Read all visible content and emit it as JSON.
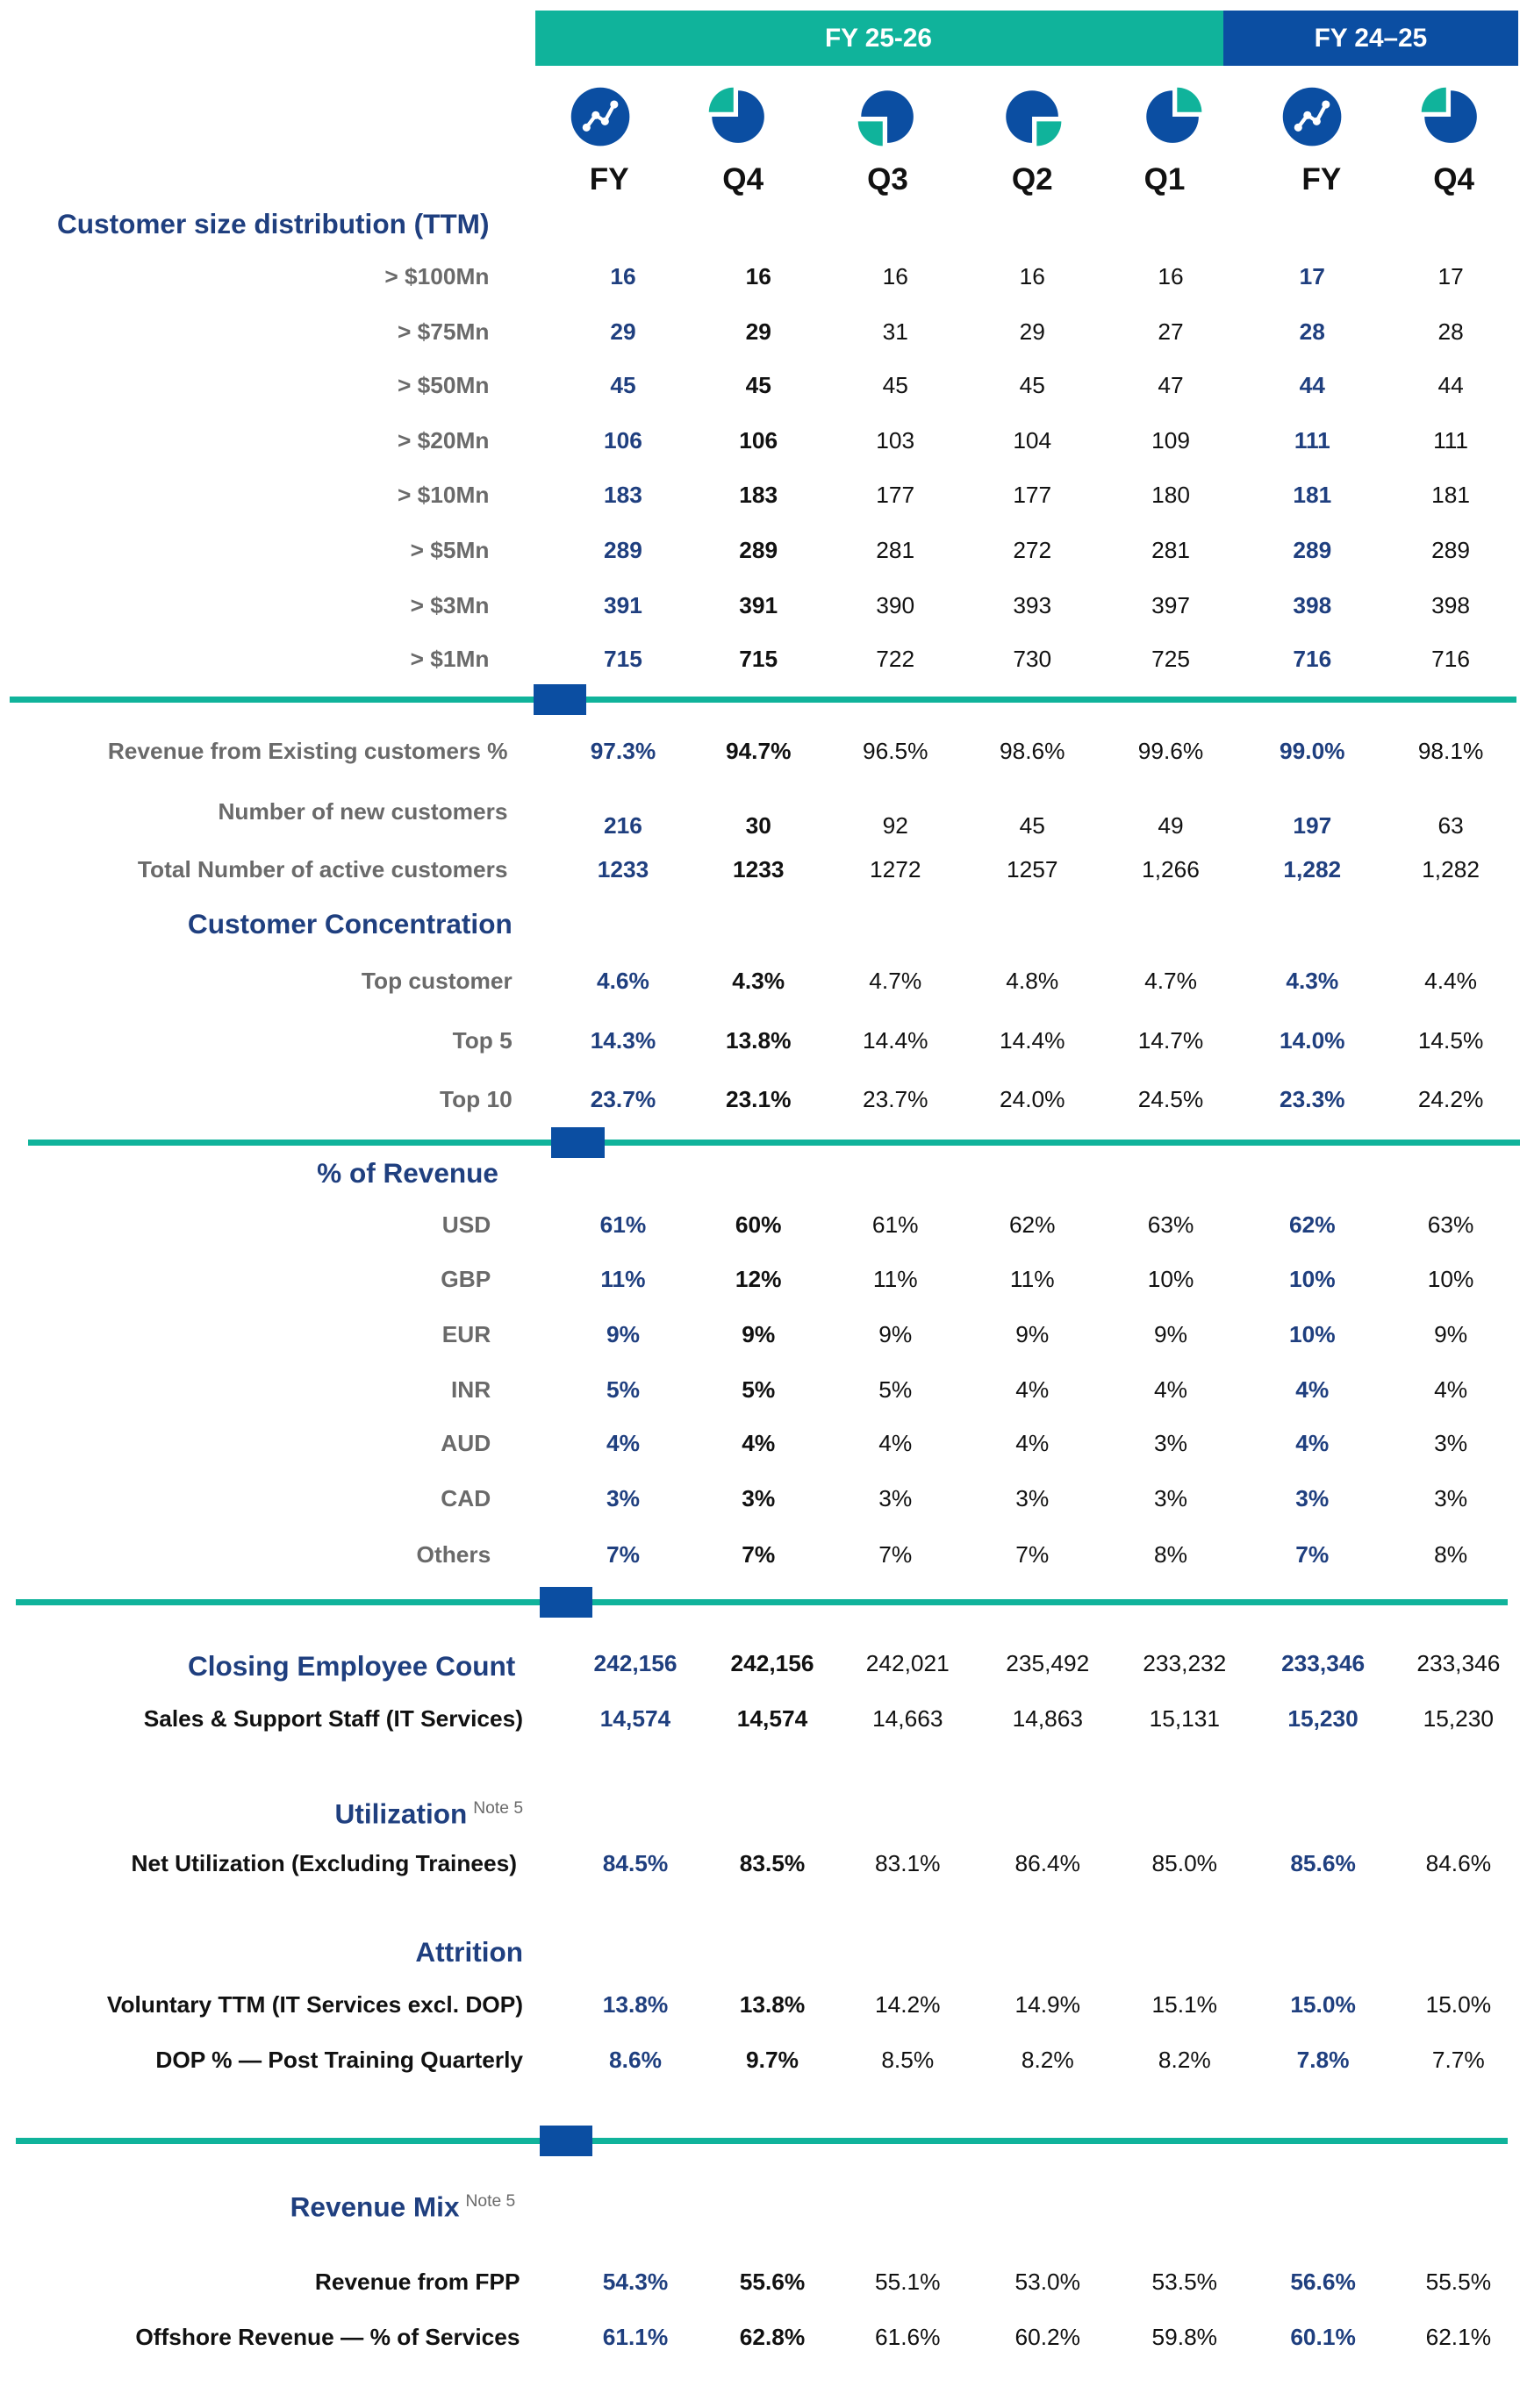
{
  "header": {
    "groups": [
      "FY 25-26",
      "FY 24–25"
    ],
    "columns": [
      "FY",
      "Q4",
      "Q3",
      "Q2",
      "Q1",
      "FY",
      "Q4"
    ]
  },
  "sections": [
    {
      "title": "Customer size distribution (TTM)",
      "rows": [
        {
          "label": "> $100Mn",
          "values": [
            "16",
            "16",
            "16",
            "16",
            "16",
            "17",
            "17"
          ]
        },
        {
          "label": "> $75Mn",
          "values": [
            "29",
            "29",
            "31",
            "29",
            "27",
            "28",
            "28"
          ]
        },
        {
          "label": "> $50Mn",
          "values": [
            "45",
            "45",
            "45",
            "45",
            "47",
            "44",
            "44"
          ]
        },
        {
          "label": "> $20Mn",
          "values": [
            "106",
            "106",
            "103",
            "104",
            "109",
            "111",
            "111"
          ]
        },
        {
          "label": "> $10Mn",
          "values": [
            "183",
            "183",
            "177",
            "177",
            "180",
            "181",
            "181"
          ]
        },
        {
          "label": "> $5Mn",
          "values": [
            "289",
            "289",
            "281",
            "272",
            "281",
            "289",
            "289"
          ]
        },
        {
          "label": "> $3Mn",
          "values": [
            "391",
            "391",
            "390",
            "393",
            "397",
            "398",
            "398"
          ]
        },
        {
          "label": "> $1Mn",
          "values": [
            "715",
            "715",
            "722",
            "730",
            "725",
            "716",
            "716"
          ]
        }
      ]
    },
    {
      "rows": [
        {
          "label": "Revenue from Existing customers %",
          "values": [
            "97.3%",
            "94.7%",
            "96.5%",
            "98.6%",
            "99.6%",
            "99.0%",
            "98.1%"
          ]
        },
        {
          "label": "Number of new customers",
          "values": [
            "216",
            "30",
            "92",
            "45",
            "49",
            "197",
            "63"
          ]
        },
        {
          "label": "Total Number of active customers",
          "values": [
            "1233",
            "1233",
            "1272",
            "1257",
            "1,266",
            "1,282",
            "1,282"
          ]
        }
      ]
    },
    {
      "title": "Customer Concentration",
      "rows": [
        {
          "label": "Top customer",
          "values": [
            "4.6%",
            "4.3%",
            "4.7%",
            "4.8%",
            "4.7%",
            "4.3%",
            "4.4%"
          ]
        },
        {
          "label": "Top 5",
          "values": [
            "14.3%",
            "13.8%",
            "14.4%",
            "14.4%",
            "14.7%",
            "14.0%",
            "14.5%"
          ]
        },
        {
          "label": "Top 10",
          "values": [
            "23.7%",
            "23.1%",
            "23.7%",
            "24.0%",
            "24.5%",
            "23.3%",
            "24.2%"
          ]
        }
      ]
    },
    {
      "title": "% of Revenue",
      "rows": [
        {
          "label": "USD",
          "values": [
            "61%",
            "60%",
            "61%",
            "62%",
            "63%",
            "62%",
            "63%"
          ]
        },
        {
          "label": "GBP",
          "values": [
            "11%",
            "12%",
            "11%",
            "11%",
            "10%",
            "10%",
            "10%"
          ]
        },
        {
          "label": "EUR",
          "values": [
            "9%",
            "9%",
            "9%",
            "9%",
            "9%",
            "10%",
            "9%"
          ]
        },
        {
          "label": "INR",
          "values": [
            "5%",
            "5%",
            "5%",
            "4%",
            "4%",
            "4%",
            "4%"
          ]
        },
        {
          "label": "AUD",
          "values": [
            "4%",
            "4%",
            "4%",
            "4%",
            "3%",
            "4%",
            "3%"
          ]
        },
        {
          "label": "CAD",
          "values": [
            "3%",
            "3%",
            "3%",
            "3%",
            "3%",
            "3%",
            "3%"
          ]
        },
        {
          "label": "Others",
          "values": [
            "7%",
            "7%",
            "7%",
            "7%",
            "8%",
            "7%",
            "8%"
          ]
        }
      ]
    },
    {
      "title": "Closing Employee Count",
      "values": [
        "242,156",
        "242,156",
        "242,021",
        "235,492",
        "233,232",
        "233,346",
        "233,346"
      ],
      "rows": [
        {
          "label": "Sales & Support Staff (IT Services)",
          "values": [
            "14,574",
            "14,574",
            "14,663",
            "14,863",
            "15,131",
            "15,230",
            "15,230"
          ]
        }
      ]
    },
    {
      "title": "Utilization",
      "note": "Note 5",
      "rows": [
        {
          "label": "Net Utilization (Excluding Trainees)",
          "values": [
            "84.5%",
            "83.5%",
            "83.1%",
            "86.4%",
            "85.0%",
            "85.6%",
            "84.6%"
          ]
        }
      ]
    },
    {
      "title": "Attrition",
      "rows": [
        {
          "label": "Voluntary TTM (IT Services excl. DOP)",
          "values": [
            "13.8%",
            "13.8%",
            "14.2%",
            "14.9%",
            "15.1%",
            "15.0%",
            "15.0%"
          ]
        },
        {
          "label": "DOP % — Post Training Quarterly",
          "values": [
            "8.6%",
            "9.7%",
            "8.5%",
            "8.2%",
            "8.2%",
            "7.8%",
            "7.7%"
          ]
        }
      ]
    },
    {
      "title": "Revenue Mix",
      "note": "Note 5",
      "rows": [
        {
          "label": "Revenue from FPP",
          "values": [
            "54.3%",
            "55.6%",
            "55.1%",
            "53.0%",
            "53.5%",
            "56.6%",
            "55.5%"
          ]
        },
        {
          "label": "Offshore Revenue — % of Services",
          "values": [
            "61.1%",
            "62.8%",
            "61.6%",
            "60.2%",
            "59.8%",
            "60.1%",
            "62.1%"
          ]
        }
      ]
    }
  ]
}
